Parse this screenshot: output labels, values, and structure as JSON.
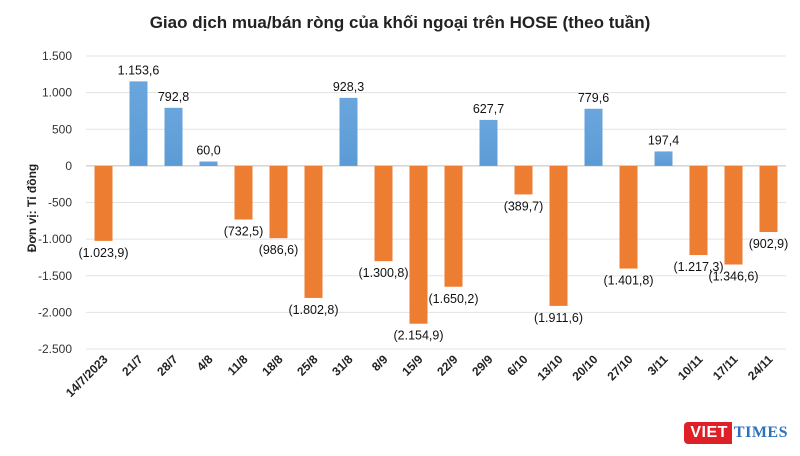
{
  "chart_data": {
    "type": "bar",
    "title": "Giao dịch mua/bán ròng của khối ngoại trên HOSE (theo tuần)",
    "ylabel": "Đơn vị: Tỉ đồng",
    "xlabel": "",
    "ylim": [
      -2500,
      1500
    ],
    "yticks": [
      1500,
      1000,
      500,
      0,
      -500,
      -1000,
      -1500,
      -2000,
      -2500
    ],
    "ytick_labels": [
      "1.500",
      "1.000",
      "500",
      "0",
      "-500",
      "-1.000",
      "-1.500",
      "-2.000",
      "-2.500"
    ],
    "grid": true,
    "legend": "none",
    "colors": {
      "positive": "#5b9bd5",
      "negative": "#ed7d31"
    },
    "categories": [
      "14/7/2023",
      "21/7",
      "28/7",
      "4/8",
      "11/8",
      "18/8",
      "25/8",
      "31/8",
      "8/9",
      "15/9",
      "22/9",
      "29/9",
      "6/10",
      "13/10",
      "20/10",
      "27/10",
      "3/11",
      "10/11",
      "17/11",
      "24/11"
    ],
    "values": [
      -1023.9,
      1153.6,
      792.8,
      60.0,
      -732.5,
      -986.6,
      -1802.8,
      928.3,
      -1300.8,
      -2154.9,
      -1650.2,
      627.7,
      -389.7,
      -1911.6,
      779.6,
      -1401.8,
      197.4,
      -1217.3,
      -1346.6,
      -902.9
    ],
    "data_labels": [
      "(1.023,9)",
      "1.153,6",
      "792,8",
      "60,0",
      "(732,5)",
      "(986,6)",
      "(1.802,8)",
      "928,3",
      "(1.300,8)",
      "(2.154,9)",
      "(1.650,2)",
      "627,7",
      "(389,7)",
      "(1.911,6)",
      "779,6",
      "(1.401,8)",
      "197,4",
      "(1.217,3)",
      "(1.346,6)",
      "(902,9)"
    ]
  },
  "watermark": {
    "part1": "VIET",
    "part2": "TIMES"
  }
}
